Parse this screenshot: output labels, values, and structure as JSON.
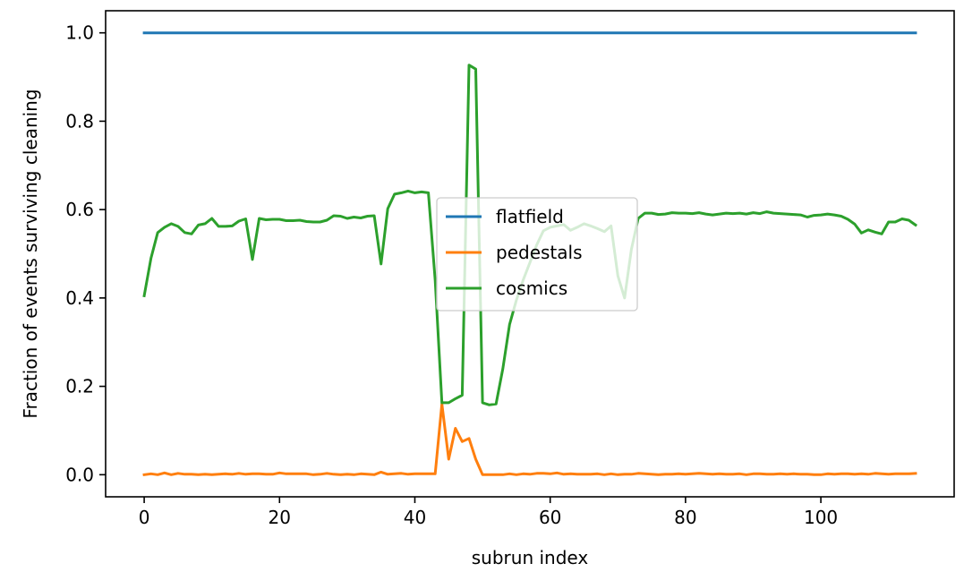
{
  "chart_data": {
    "type": "line",
    "title": "",
    "xlabel": "subrun index",
    "ylabel": "Fraction of events surviving cleaning",
    "xlim": [
      -5.7,
      119.7
    ],
    "ylim": [
      -0.05,
      1.05
    ],
    "xticks": [
      0,
      20,
      40,
      60,
      80,
      100
    ],
    "yticks": [
      0.0,
      0.2,
      0.4,
      0.6,
      0.8,
      1.0
    ],
    "xtick_labels": [
      "0",
      "20",
      "40",
      "60",
      "80",
      "100"
    ],
    "ytick_labels": [
      "0.0",
      "0.2",
      "0.4",
      "0.6",
      "0.8",
      "1.0"
    ],
    "legend_position": "center",
    "grid": false,
    "series": [
      {
        "name": "flatfield",
        "color": "#1f77b4",
        "x": [
          0,
          114
        ],
        "y": [
          1.0,
          1.0
        ]
      },
      {
        "name": "pedestals",
        "color": "#ff7f0e",
        "x": [
          0,
          1,
          2,
          3,
          4,
          5,
          6,
          7,
          8,
          9,
          10,
          11,
          12,
          13,
          14,
          15,
          16,
          17,
          18,
          19,
          20,
          21,
          22,
          23,
          24,
          25,
          26,
          27,
          28,
          29,
          30,
          31,
          32,
          33,
          34,
          35,
          36,
          37,
          38,
          39,
          40,
          41,
          42,
          43,
          44,
          45,
          46,
          47,
          48,
          49,
          50,
          51,
          52,
          53,
          54,
          55,
          56,
          57,
          58,
          59,
          60,
          61,
          62,
          63,
          64,
          65,
          66,
          67,
          68,
          69,
          70,
          71,
          72,
          73,
          74,
          75,
          76,
          77,
          78,
          79,
          80,
          81,
          82,
          83,
          84,
          85,
          86,
          87,
          88,
          89,
          90,
          91,
          92,
          93,
          94,
          95,
          96,
          97,
          98,
          99,
          100,
          101,
          102,
          103,
          104,
          105,
          106,
          107,
          108,
          109,
          110,
          111,
          112,
          113,
          114
        ],
        "y": [
          0.0,
          0.002,
          0.0,
          0.004,
          0.0,
          0.003,
          0.001,
          0.001,
          0.0,
          0.001,
          0.0,
          0.001,
          0.002,
          0.001,
          0.003,
          0.001,
          0.002,
          0.002,
          0.001,
          0.001,
          0.004,
          0.002,
          0.002,
          0.002,
          0.002,
          0.0,
          0.001,
          0.003,
          0.001,
          0.0,
          0.001,
          0.0,
          0.002,
          0.001,
          0.0,
          0.006,
          0.001,
          0.002,
          0.003,
          0.001,
          0.002,
          0.002,
          0.002,
          0.002,
          0.16,
          0.035,
          0.105,
          0.075,
          0.082,
          0.035,
          0.0,
          0.0,
          0.0,
          0.0,
          0.002,
          0.0,
          0.002,
          0.001,
          0.003,
          0.003,
          0.002,
          0.004,
          0.001,
          0.002,
          0.001,
          0.001,
          0.001,
          0.002,
          0.0,
          0.002,
          0.0,
          0.001,
          0.001,
          0.003,
          0.002,
          0.001,
          0.0,
          0.001,
          0.001,
          0.002,
          0.001,
          0.002,
          0.003,
          0.002,
          0.001,
          0.002,
          0.001,
          0.001,
          0.002,
          0.0,
          0.002,
          0.002,
          0.001,
          0.001,
          0.002,
          0.001,
          0.002,
          0.001,
          0.001,
          0.0,
          0.0,
          0.002,
          0.001,
          0.002,
          0.002,
          0.001,
          0.002,
          0.001,
          0.003,
          0.002,
          0.001,
          0.002,
          0.002,
          0.002,
          0.003
        ]
      },
      {
        "name": "cosmics",
        "color": "#2ca02c",
        "x": [
          0,
          1,
          2,
          3,
          4,
          5,
          6,
          7,
          8,
          9,
          10,
          11,
          12,
          13,
          14,
          15,
          16,
          17,
          18,
          19,
          20,
          21,
          22,
          23,
          24,
          25,
          26,
          27,
          28,
          29,
          30,
          31,
          32,
          33,
          34,
          35,
          36,
          37,
          38,
          39,
          40,
          41,
          42,
          43,
          44,
          45,
          46,
          47,
          48,
          49,
          50,
          51,
          52,
          53,
          54,
          55,
          56,
          57,
          58,
          59,
          60,
          61,
          62,
          63,
          64,
          65,
          66,
          67,
          68,
          69,
          70,
          71,
          72,
          73,
          74,
          75,
          76,
          77,
          78,
          79,
          80,
          81,
          82,
          83,
          84,
          85,
          86,
          87,
          88,
          89,
          90,
          91,
          92,
          93,
          94,
          95,
          96,
          97,
          98,
          99,
          100,
          101,
          102,
          103,
          104,
          105,
          106,
          107,
          108,
          109,
          110,
          111,
          112,
          113,
          114
        ],
        "y": [
          0.405,
          0.49,
          0.548,
          0.56,
          0.568,
          0.562,
          0.548,
          0.545,
          0.565,
          0.568,
          0.58,
          0.562,
          0.562,
          0.563,
          0.574,
          0.579,
          0.487,
          0.58,
          0.577,
          0.578,
          0.578,
          0.575,
          0.575,
          0.576,
          0.573,
          0.572,
          0.572,
          0.576,
          0.586,
          0.585,
          0.58,
          0.583,
          0.581,
          0.585,
          0.586,
          0.477,
          0.602,
          0.635,
          0.638,
          0.642,
          0.638,
          0.64,
          0.638,
          0.44,
          0.163,
          0.163,
          0.172,
          0.18,
          0.927,
          0.918,
          0.163,
          0.158,
          0.16,
          0.24,
          0.34,
          0.395,
          0.44,
          0.48,
          0.52,
          0.552,
          0.56,
          0.563,
          0.566,
          0.553,
          0.56,
          0.568,
          0.563,
          0.557,
          0.55,
          0.563,
          0.45,
          0.4,
          0.51,
          0.58,
          0.592,
          0.592,
          0.589,
          0.59,
          0.593,
          0.592,
          0.592,
          0.591,
          0.593,
          0.59,
          0.588,
          0.59,
          0.592,
          0.591,
          0.592,
          0.59,
          0.593,
          0.591,
          0.595,
          0.592,
          0.591,
          0.59,
          0.589,
          0.588,
          0.583,
          0.587,
          0.588,
          0.59,
          0.588,
          0.585,
          0.578,
          0.567,
          0.547,
          0.554,
          0.549,
          0.545,
          0.572,
          0.572,
          0.579,
          0.576,
          0.565
        ]
      }
    ]
  }
}
